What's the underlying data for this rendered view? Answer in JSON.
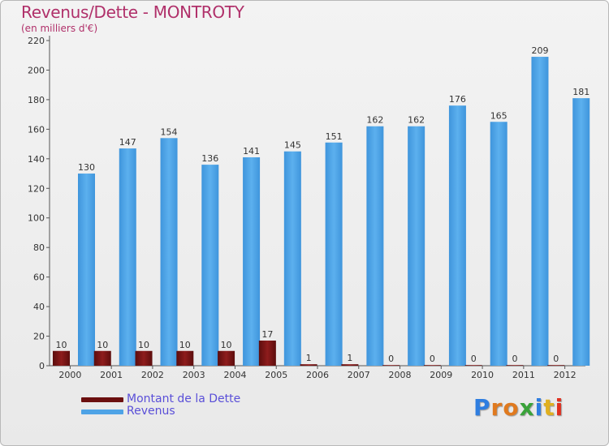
{
  "chart_data": {
    "type": "bar",
    "title": "Revenus/Dette - MONTROTY",
    "subtitle": "(en milliers d'€)",
    "categories": [
      "2000",
      "2001",
      "2002",
      "2003",
      "2004",
      "2005",
      "2006",
      "2007",
      "2008",
      "2009",
      "2010",
      "2011",
      "2012"
    ],
    "series": [
      {
        "name": "Montant de la Dette",
        "color": "#7a1515",
        "values": [
          10,
          10,
          10,
          10,
          10,
          17,
          1,
          1,
          0,
          0,
          0,
          0,
          0
        ]
      },
      {
        "name": "Revenus",
        "color": "#4ea3e6",
        "values": [
          130,
          147,
          154,
          136,
          141,
          145,
          151,
          162,
          162,
          176,
          165,
          209,
          181
        ]
      }
    ],
    "ylim": [
      0,
      220
    ],
    "yticks": [
      0,
      20,
      40,
      60,
      80,
      100,
      120,
      140,
      160,
      180,
      200,
      220
    ],
    "grid": false,
    "legend": "bottom-left"
  },
  "logo": {
    "letters": [
      "P",
      "r",
      "o",
      "x",
      "i",
      "t",
      "i"
    ],
    "colors": [
      "#2f7ee0",
      "#e07a1f",
      "#e07a1f",
      "#3aa33a",
      "#2f7ee0",
      "#e0b01f",
      "#e0301f"
    ]
  }
}
